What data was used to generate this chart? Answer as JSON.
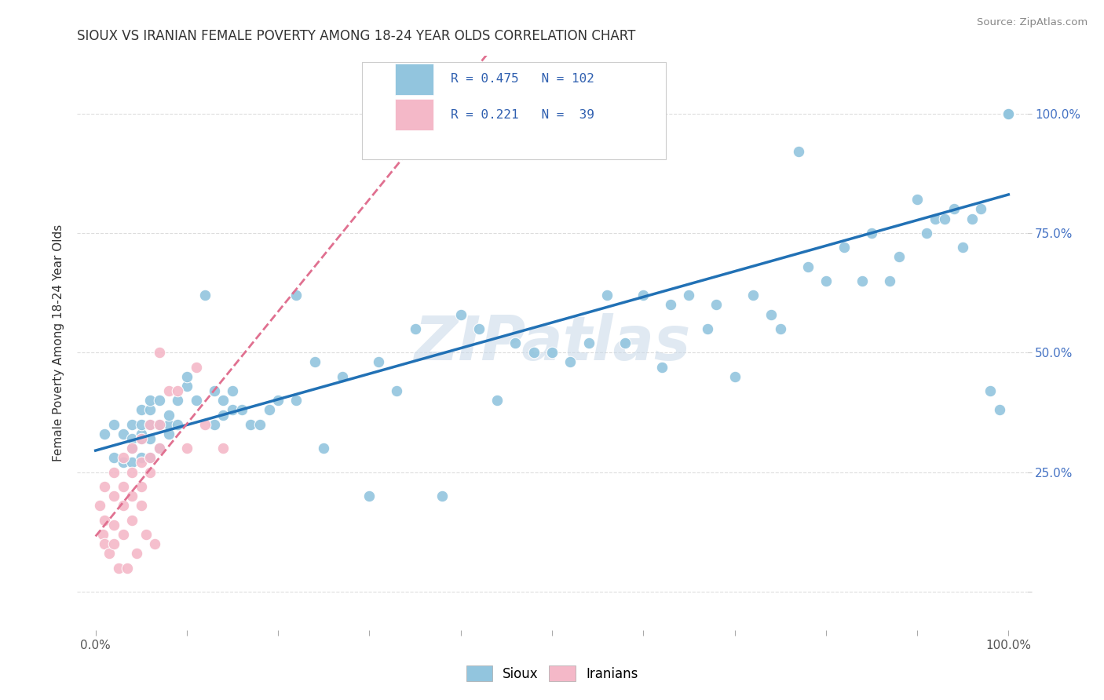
{
  "title": "SIOUX VS IRANIAN FEMALE POVERTY AMONG 18-24 YEAR OLDS CORRELATION CHART",
  "source": "Source: ZipAtlas.com",
  "ylabel": "Female Poverty Among 18-24 Year Olds",
  "xlim": [
    -0.02,
    1.02
  ],
  "ylim": [
    -0.08,
    1.12
  ],
  "ytick_positions": [
    0.0,
    0.25,
    0.5,
    0.75,
    1.0
  ],
  "yticklabels_right": [
    "",
    "25.0%",
    "50.0%",
    "75.0%",
    "100.0%"
  ],
  "legend_r_sioux": "0.475",
  "legend_n_sioux": "102",
  "legend_r_iranians": "0.221",
  "legend_n_iranians": "39",
  "sioux_color": "#92c5de",
  "iranians_color": "#f4b8c8",
  "trend_sioux_color": "#2171b5",
  "trend_iranians_color": "#e07090",
  "watermark": "ZIPatlas",
  "background_color": "#ffffff",
  "sioux_x": [
    0.01,
    0.02,
    0.02,
    0.03,
    0.03,
    0.04,
    0.04,
    0.04,
    0.04,
    0.05,
    0.05,
    0.05,
    0.05,
    0.05,
    0.06,
    0.06,
    0.06,
    0.06,
    0.06,
    0.07,
    0.07,
    0.07,
    0.08,
    0.08,
    0.08,
    0.09,
    0.09,
    0.1,
    0.1,
    0.11,
    0.12,
    0.13,
    0.13,
    0.14,
    0.14,
    0.15,
    0.15,
    0.16,
    0.17,
    0.18,
    0.19,
    0.2,
    0.22,
    0.22,
    0.24,
    0.25,
    0.27,
    0.3,
    0.31,
    0.33,
    0.35,
    0.38,
    0.4,
    0.42,
    0.44,
    0.46,
    0.48,
    0.5,
    0.52,
    0.54,
    0.56,
    0.58,
    0.6,
    0.62,
    0.63,
    0.65,
    0.67,
    0.68,
    0.7,
    0.72,
    0.74,
    0.75,
    0.77,
    0.78,
    0.8,
    0.82,
    0.84,
    0.85,
    0.87,
    0.88,
    0.9,
    0.91,
    0.92,
    0.93,
    0.94,
    0.95,
    0.96,
    0.97,
    0.98,
    0.99,
    1.0,
    1.0,
    1.0,
    1.0,
    1.0,
    1.0,
    1.0,
    1.0,
    1.0,
    1.0,
    1.0,
    1.0
  ],
  "sioux_y": [
    0.33,
    0.28,
    0.35,
    0.27,
    0.33,
    0.27,
    0.3,
    0.32,
    0.35,
    0.28,
    0.32,
    0.33,
    0.35,
    0.38,
    0.28,
    0.32,
    0.35,
    0.38,
    0.4,
    0.3,
    0.35,
    0.4,
    0.33,
    0.35,
    0.37,
    0.35,
    0.4,
    0.43,
    0.45,
    0.4,
    0.62,
    0.35,
    0.42,
    0.4,
    0.37,
    0.38,
    0.42,
    0.38,
    0.35,
    0.35,
    0.38,
    0.4,
    0.4,
    0.62,
    0.48,
    0.3,
    0.45,
    0.2,
    0.48,
    0.42,
    0.55,
    0.2,
    0.58,
    0.55,
    0.4,
    0.52,
    0.5,
    0.5,
    0.48,
    0.52,
    0.62,
    0.52,
    0.62,
    0.47,
    0.6,
    0.62,
    0.55,
    0.6,
    0.45,
    0.62,
    0.58,
    0.55,
    0.92,
    0.68,
    0.65,
    0.72,
    0.65,
    0.75,
    0.65,
    0.7,
    0.82,
    0.75,
    0.78,
    0.78,
    0.8,
    0.72,
    0.78,
    0.8,
    0.42,
    0.38,
    1.0,
    1.0,
    1.0,
    1.0,
    1.0,
    1.0,
    1.0,
    1.0,
    1.0,
    1.0,
    1.0,
    1.0
  ],
  "iranians_x": [
    0.005,
    0.008,
    0.01,
    0.01,
    0.01,
    0.015,
    0.02,
    0.02,
    0.02,
    0.02,
    0.025,
    0.03,
    0.03,
    0.03,
    0.03,
    0.035,
    0.04,
    0.04,
    0.04,
    0.04,
    0.045,
    0.05,
    0.05,
    0.05,
    0.05,
    0.055,
    0.06,
    0.06,
    0.06,
    0.065,
    0.07,
    0.07,
    0.07,
    0.08,
    0.09,
    0.1,
    0.11,
    0.12,
    0.14
  ],
  "iranians_y": [
    0.18,
    0.12,
    0.1,
    0.15,
    0.22,
    0.08,
    0.1,
    0.14,
    0.2,
    0.25,
    0.05,
    0.12,
    0.18,
    0.22,
    0.28,
    0.05,
    0.15,
    0.2,
    0.25,
    0.3,
    0.08,
    0.18,
    0.22,
    0.27,
    0.32,
    0.12,
    0.25,
    0.28,
    0.35,
    0.1,
    0.3,
    0.35,
    0.5,
    0.42,
    0.42,
    0.3,
    0.47,
    0.35,
    0.3
  ]
}
